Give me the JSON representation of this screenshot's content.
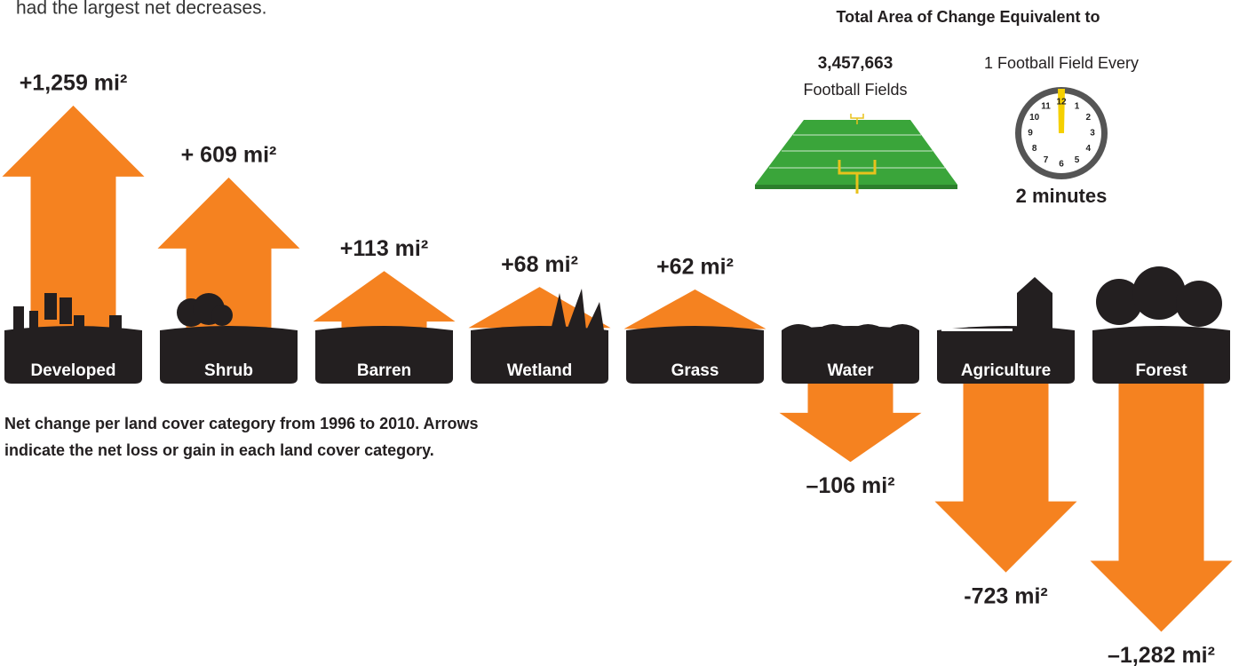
{
  "intro_text": "had the largest net decreases.",
  "chart_data": {
    "type": "arrow",
    "categories": [
      "Developed",
      "Shrub",
      "Barren",
      "Wetland",
      "Grass",
      "Water",
      "Agriculture",
      "Forest"
    ],
    "values": [
      1259,
      609,
      113,
      68,
      62,
      -106,
      -723,
      -1282
    ],
    "value_labels": [
      "+1,259 mi²",
      "+ 609 mi²",
      "+113 mi²",
      "+68 mi²",
      "+62 mi²",
      "–106 mi²",
      "-723 mi²",
      "–1,282 mi²"
    ],
    "color": "#f58220",
    "caption": [
      "Net change per land cover category from 1996 to 2010. Arrows",
      "indicate the net loss or gain in each land cover category."
    ]
  },
  "equivalent": {
    "title": "Total Area of Change Equivalent to",
    "fields_number": "3,457,663",
    "fields_label": "Football Fields",
    "every_label": "1 Football Field Every",
    "every_value": "2 minutes",
    "clock_numbers": [
      "12",
      "1",
      "2",
      "3",
      "4",
      "5",
      "6",
      "7",
      "8",
      "9",
      "10",
      "11"
    ]
  }
}
